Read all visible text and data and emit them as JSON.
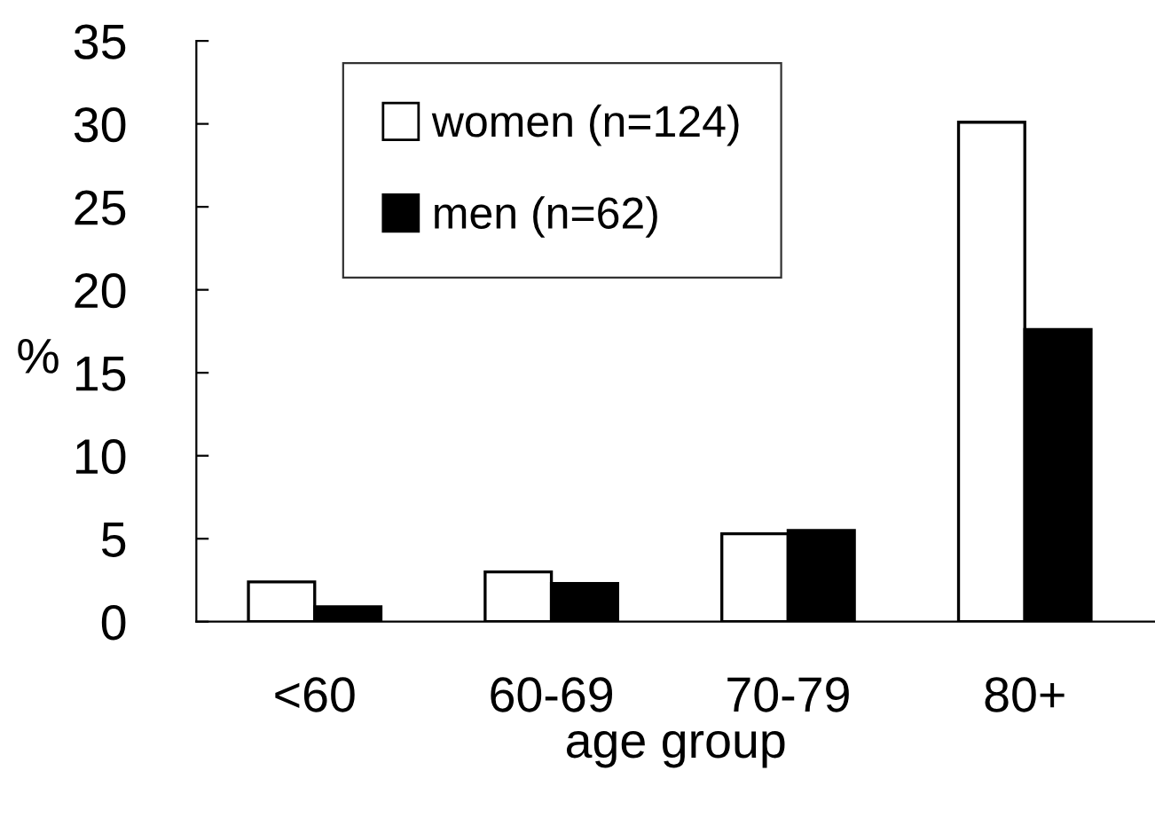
{
  "chart_data": {
    "type": "bar",
    "xlabel": "age group",
    "ylabel": "%",
    "categories": [
      "<60",
      "60-69",
      "70-79",
      "80+"
    ],
    "series": [
      {
        "name": "women (n=124)",
        "color": "#ffffff",
        "values": [
          2.4,
          3.0,
          5.3,
          30.1
        ]
      },
      {
        "name": "men (n=62)",
        "color": "#000000",
        "values": [
          0.9,
          2.3,
          5.5,
          17.6
        ]
      }
    ],
    "ylim": [
      0,
      35
    ],
    "yticks": [
      0,
      5,
      10,
      15,
      20,
      25,
      30,
      35
    ],
    "grid": false,
    "legend": "top left"
  }
}
